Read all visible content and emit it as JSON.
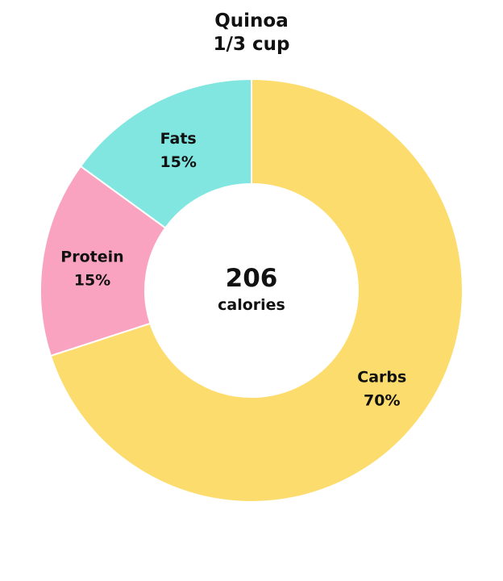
{
  "chart_data": {
    "type": "pie",
    "title": "Quinoa",
    "subtitle": "1/3 cup",
    "center": {
      "value": "206",
      "unit": "calories"
    },
    "slices": [
      {
        "name": "Carbs",
        "label": "70%",
        "value": 70,
        "color": "#fddc6e"
      },
      {
        "name": "Protein",
        "label": "15%",
        "value": 15,
        "color": "#f9a3c0"
      },
      {
        "name": "Fats",
        "label": "15%",
        "value": 15,
        "color": "#82e6e0"
      }
    ]
  }
}
